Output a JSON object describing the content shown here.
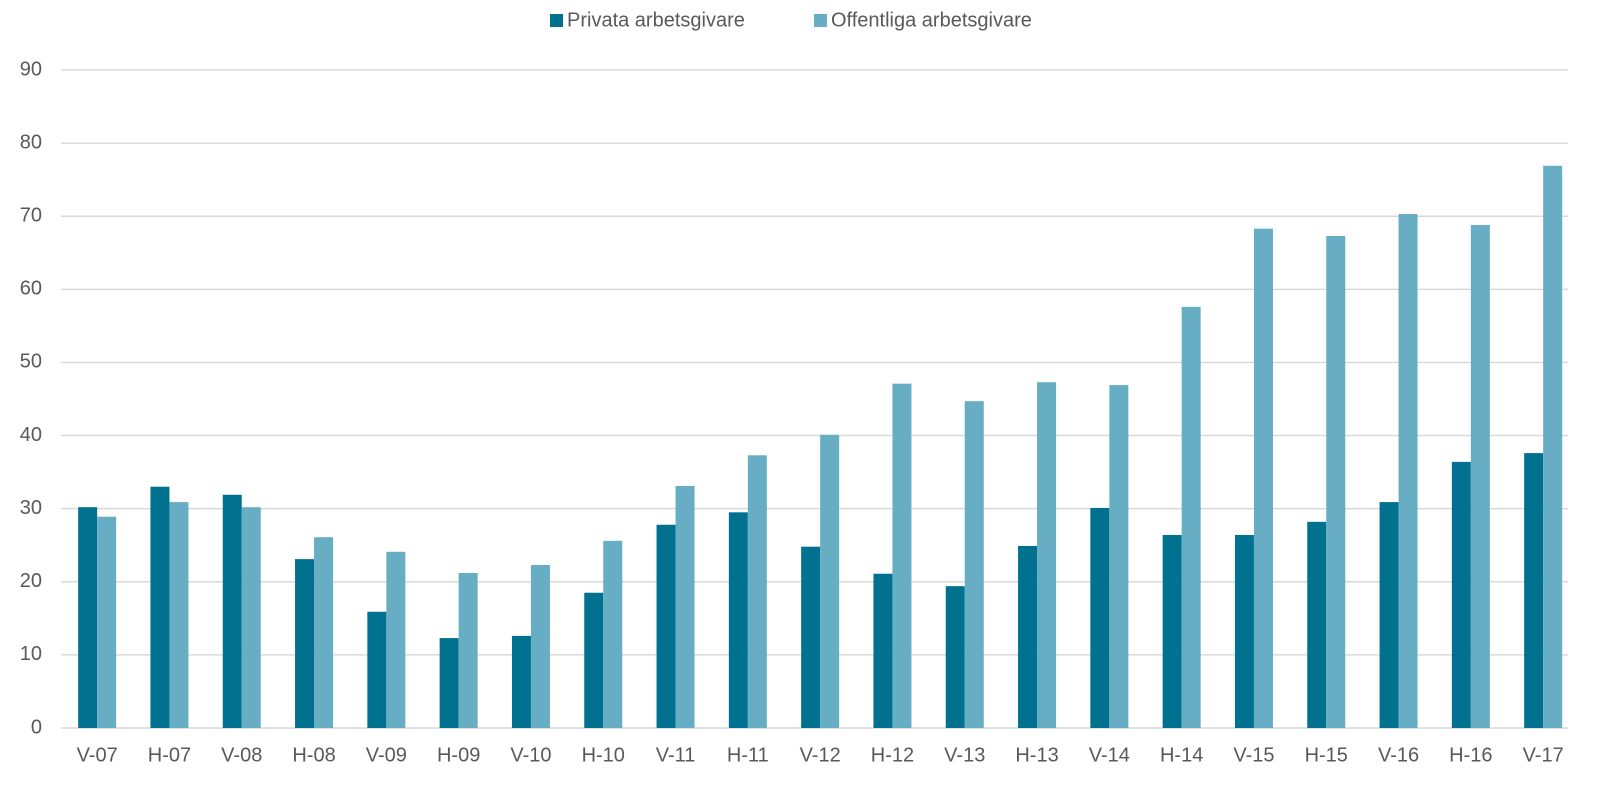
{
  "chart_data": {
    "type": "bar",
    "categories": [
      "V-07",
      "H-07",
      "V-08",
      "H-08",
      "V-09",
      "H-09",
      "V-10",
      "H-10",
      "V-11",
      "H-11",
      "V-12",
      "H-12",
      "V-13",
      "H-13",
      "V-14",
      "H-14",
      "V-15",
      "H-15",
      "V-16",
      "H-16",
      "V-17"
    ],
    "series": [
      {
        "name": "Privata arbetsgivare",
        "color": "#00728f",
        "values": [
          30.2,
          33.0,
          31.9,
          23.1,
          15.9,
          12.3,
          12.6,
          18.5,
          27.8,
          29.5,
          24.8,
          21.1,
          19.4,
          24.9,
          30.1,
          26.4,
          26.4,
          28.2,
          30.9,
          36.4,
          37.6
        ]
      },
      {
        "name": "Offentliga arbetsgivare",
        "color": "#67adc4",
        "values": [
          28.9,
          30.9,
          30.2,
          26.1,
          24.1,
          21.2,
          22.3,
          25.6,
          33.1,
          37.3,
          40.1,
          47.1,
          44.7,
          47.3,
          46.9,
          57.6,
          68.3,
          67.3,
          70.3,
          68.8,
          76.9
        ]
      }
    ],
    "ylim": [
      0,
      90
    ],
    "yticks": [
      0,
      10,
      20,
      30,
      40,
      50,
      60,
      70,
      80,
      90
    ],
    "grid": true,
    "legend": "top"
  }
}
